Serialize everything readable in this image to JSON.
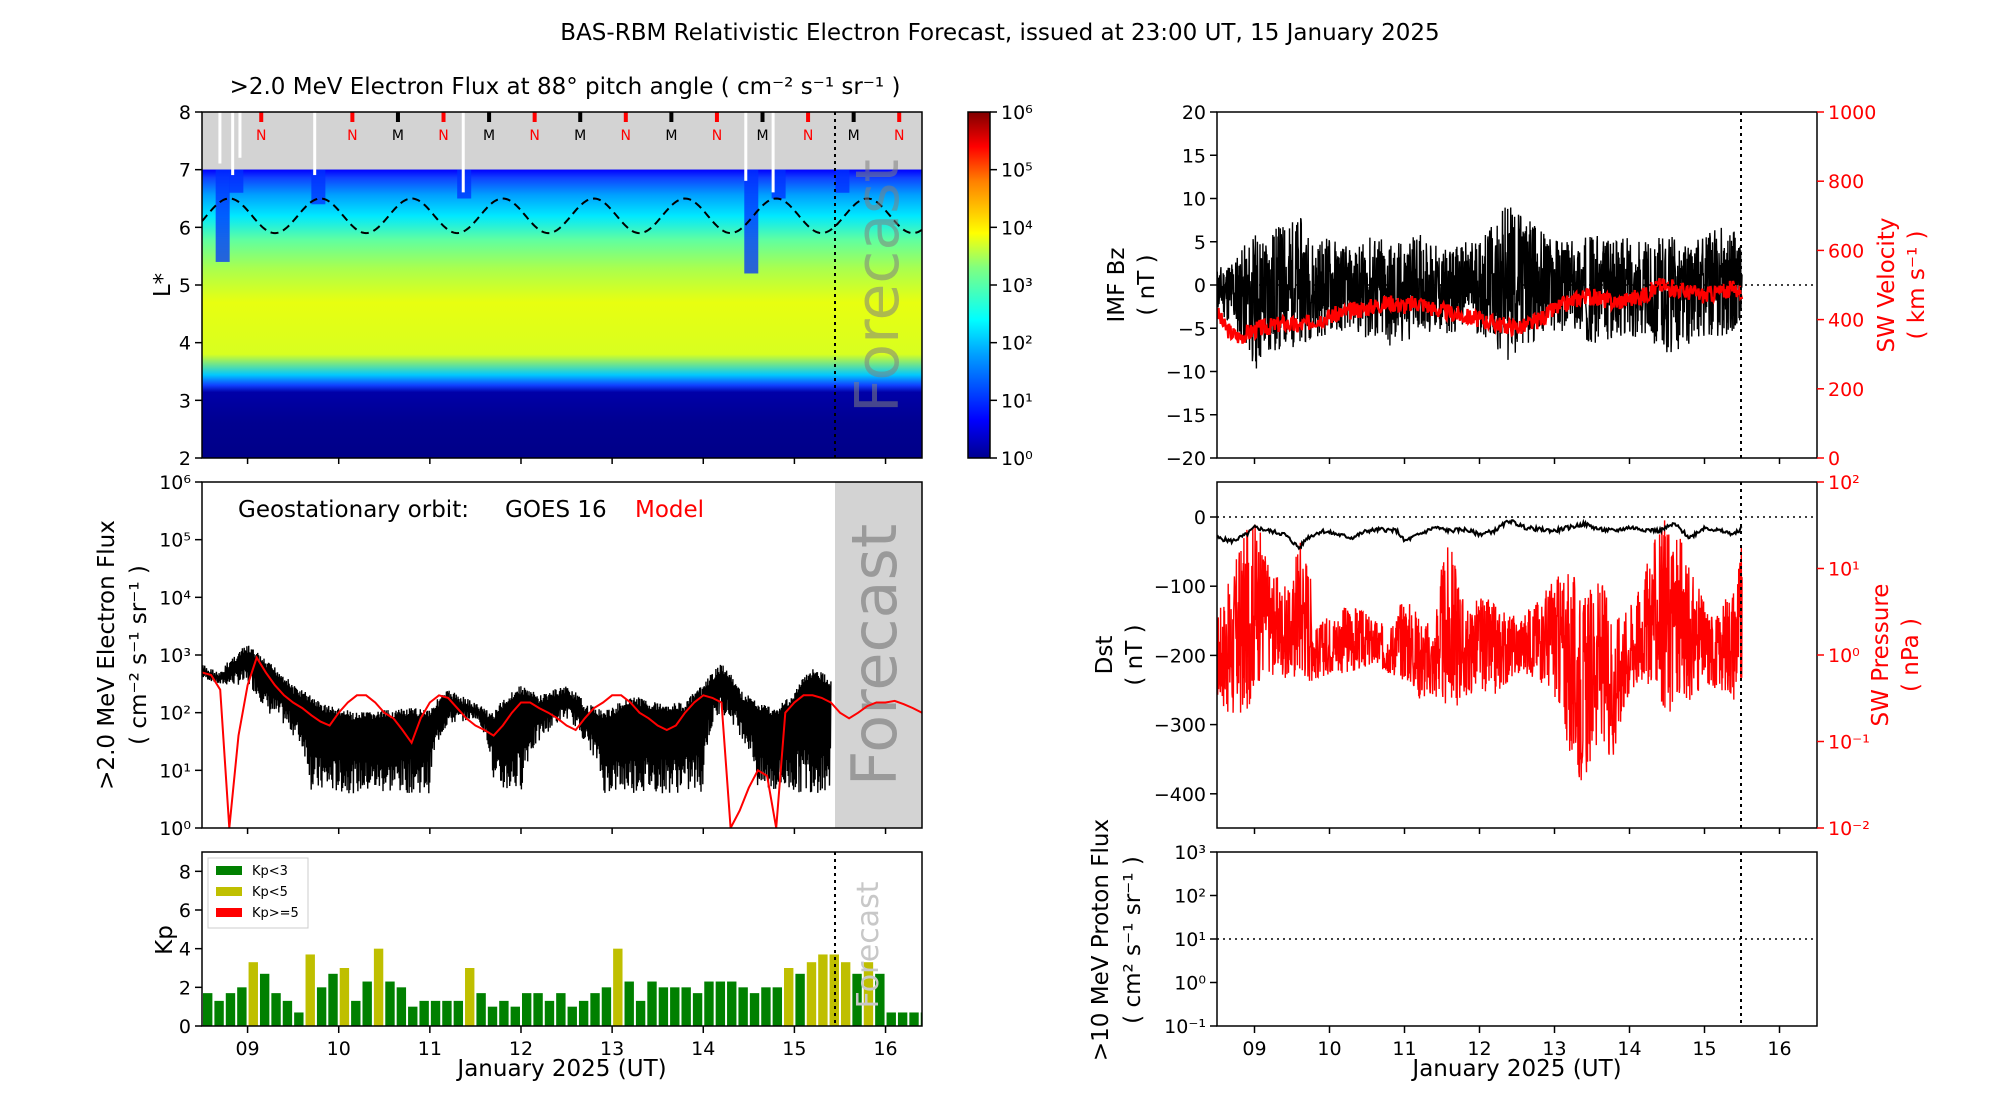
{
  "figure": {
    "title": "BAS-RBM Relativistic Electron Forecast, issued at 23:00 UT, 15 January 2025",
    "forecast_word": "Forecast",
    "xlabel": "January 2025 (UT)",
    "day_ticks": [
      "09",
      "10",
      "11",
      "12",
      "13",
      "14",
      "15",
      "16"
    ]
  },
  "colors": {
    "model": "#ff0000",
    "observed": "#000000",
    "kp_low": "#008000",
    "kp_mid": "#bfbf00",
    "kp_high": "#ff0000",
    "forecast_shade": "#d3d3d3"
  },
  "chart_data": [
    {
      "type": "heatmap",
      "id": "flux_map",
      "title": ">2.0 MeV Electron Flux at 88° pitch angle ( cm⁻² s⁻¹ sr⁻¹ )",
      "ylabel": "L*",
      "ylim": [
        2,
        8
      ],
      "yticks": [
        "2",
        "3",
        "4",
        "5",
        "6",
        "7",
        "8"
      ],
      "colorbar": {
        "ticks": [
          "10⁰",
          "10¹",
          "10²",
          "10³",
          "10⁴",
          "10⁵",
          "10⁶"
        ],
        "range": [
          0,
          6
        ]
      },
      "markers": [
        {
          "day": 9.2,
          "label": "N"
        },
        {
          "day": 10.2,
          "label": "N"
        },
        {
          "day": 10.7,
          "label": "M"
        },
        {
          "day": 11.2,
          "label": "N"
        },
        {
          "day": 11.7,
          "label": "M"
        },
        {
          "day": 12.2,
          "label": "N"
        },
        {
          "day": 12.7,
          "label": "M"
        },
        {
          "day": 13.2,
          "label": "N"
        },
        {
          "day": 13.7,
          "label": "M"
        },
        {
          "day": 14.2,
          "label": "N"
        },
        {
          "day": 14.7,
          "label": "M"
        },
        {
          "day": 15.2,
          "label": "N"
        },
        {
          "day": 15.7,
          "label": "M"
        },
        {
          "day": 16.2,
          "label": "N"
        }
      ]
    },
    {
      "type": "line",
      "id": "geo_flux",
      "ylabel": ">2.0 MeV Electron Flux",
      "ylabel2": "( cm⁻² s⁻¹ sr⁻¹ )",
      "legend_prefix": "Geostationary orbit:",
      "legend_series": "GOES 16",
      "legend_model": "Model",
      "yscale": "log",
      "ylim": [
        1,
        1000000
      ],
      "yticks": [
        "10⁰",
        "10¹",
        "10²",
        "10³",
        "10⁴",
        "10⁵",
        "10⁶"
      ],
      "model": {
        "x": [
          8.5,
          8.6,
          8.7,
          8.8,
          8.9,
          9.0,
          9.1,
          9.2,
          9.3,
          9.4,
          9.5,
          9.6,
          9.7,
          9.8,
          9.9,
          10.0,
          10.1,
          10.2,
          10.3,
          10.4,
          10.5,
          10.6,
          10.7,
          10.8,
          10.9,
          11.0,
          11.1,
          11.2,
          11.3,
          11.4,
          11.5,
          11.6,
          11.7,
          11.8,
          11.9,
          12.0,
          12.1,
          12.2,
          12.3,
          12.4,
          12.5,
          12.6,
          12.7,
          12.8,
          12.9,
          13.0,
          13.1,
          13.2,
          13.3,
          13.4,
          13.5,
          13.6,
          13.7,
          13.8,
          13.9,
          14.0,
          14.1,
          14.2,
          14.3,
          14.4,
          14.5,
          14.6,
          14.7,
          14.8,
          14.9,
          15.0,
          15.1,
          15.2,
          15.3,
          15.4,
          15.5,
          15.6,
          15.7,
          15.8,
          15.9,
          16.0,
          16.1,
          16.2,
          16.3,
          16.4
        ],
        "y": [
          500,
          450,
          250,
          1,
          40,
          300,
          900,
          500,
          300,
          200,
          150,
          120,
          90,
          70,
          60,
          100,
          150,
          200,
          200,
          150,
          100,
          80,
          50,
          30,
          80,
          150,
          200,
          180,
          120,
          80,
          60,
          50,
          40,
          60,
          100,
          150,
          150,
          120,
          100,
          80,
          60,
          50,
          80,
          120,
          150,
          200,
          200,
          150,
          100,
          80,
          60,
          50,
          60,
          100,
          150,
          200,
          180,
          150,
          1,
          2,
          5,
          10,
          8,
          1,
          100,
          150,
          200,
          200,
          180,
          150,
          100,
          80,
          100,
          130,
          150,
          150,
          160,
          140,
          120,
          100
        ]
      },
      "observed_envelope": {
        "x": [
          8.5,
          8.7,
          9.0,
          9.2,
          9.5,
          9.7,
          9.8,
          10.0,
          10.2,
          10.5,
          10.8,
          11.0,
          11.2,
          11.5,
          11.7,
          12.0,
          12.2,
          12.5,
          12.7,
          12.9,
          13.0,
          13.2,
          13.5,
          13.8,
          14.0,
          14.2,
          14.4,
          14.6,
          14.8,
          15.0,
          15.2,
          15.4
        ],
        "upper": [
          700,
          500,
          1500,
          800,
          300,
          200,
          150,
          120,
          100,
          110,
          120,
          120,
          250,
          150,
          100,
          300,
          200,
          300,
          150,
          110,
          120,
          200,
          150,
          150,
          300,
          700,
          250,
          150,
          120,
          220,
          600,
          400
        ],
        "lower": [
          400,
          300,
          300,
          100,
          40,
          4,
          4,
          4,
          4,
          4,
          4,
          4,
          60,
          80,
          4,
          4,
          30,
          80,
          30,
          4,
          4,
          4,
          4,
          4,
          4,
          100,
          40,
          4,
          4,
          4,
          4,
          4
        ]
      }
    },
    {
      "type": "bar",
      "id": "kp",
      "ylabel": "Kp",
      "ylim": [
        0,
        9
      ],
      "yticks": [
        "0",
        "2",
        "4",
        "6",
        "8"
      ],
      "legend": [
        "Kp<3",
        "Kp<5",
        "Kp>=5"
      ],
      "start_day": 8.5,
      "bin_hours": 3,
      "values": [
        1.7,
        1.3,
        1.7,
        2.0,
        3.3,
        2.7,
        1.7,
        1.3,
        0.7,
        3.7,
        2.0,
        2.7,
        3.0,
        1.3,
        2.3,
        4.0,
        2.3,
        2.0,
        1.0,
        1.3,
        1.3,
        1.3,
        1.3,
        3.0,
        1.7,
        1.0,
        1.3,
        1.0,
        1.7,
        1.7,
        1.3,
        1.7,
        1.0,
        1.3,
        1.7,
        2.0,
        4.0,
        2.3,
        1.3,
        2.3,
        2.0,
        2.0,
        2.0,
        1.7,
        2.3,
        2.3,
        2.3,
        2.0,
        1.7,
        2.0,
        2.0,
        3.0,
        2.7,
        3.3,
        3.7,
        3.7,
        3.3,
        2.7,
        3.3,
        2.7,
        0.7,
        0.7,
        0.7,
        0.7,
        0.7,
        0.7,
        0.7,
        0.7
      ]
    },
    {
      "type": "line",
      "id": "imf_sw",
      "ylabel": "IMF Bz",
      "ylabel_unit": "( nT )",
      "ylim": [
        -20,
        20
      ],
      "yticks": [
        "−20",
        "−15",
        "−10",
        "−5",
        "0",
        "5",
        "10",
        "15",
        "20"
      ],
      "y2label": "SW Velocity",
      "y2label_unit": "( km s⁻¹ )",
      "y2lim": [
        0,
        1000
      ],
      "y2ticks": [
        "0",
        "200",
        "400",
        "600",
        "800",
        "1000"
      ],
      "bz_envelope": {
        "x": [
          8.5,
          8.8,
          9.0,
          9.3,
          9.6,
          9.8,
          10.0,
          10.3,
          10.6,
          10.9,
          11.2,
          11.5,
          11.8,
          12.0,
          12.2,
          12.4,
          12.6,
          12.9,
          13.2,
          13.5,
          13.8,
          14.0,
          14.2,
          14.5,
          14.8,
          15.0,
          15.2,
          15.5
        ],
        "upper": [
          2,
          4,
          6,
          7,
          8,
          5,
          6,
          4,
          6,
          5,
          6,
          4,
          5,
          6,
          7,
          10,
          8,
          6,
          5,
          6,
          5,
          6,
          5,
          6,
          5,
          6,
          7,
          6
        ],
        "lower": [
          -3,
          -6,
          -10,
          -8,
          -7,
          -6,
          -6,
          -5,
          -7,
          -8,
          -5,
          -6,
          -5,
          -6,
          -7,
          -9,
          -7,
          -6,
          -5,
          -7,
          -6,
          -6,
          -6,
          -8,
          -7,
          -6,
          -6,
          -5
        ]
      },
      "velocity": {
        "x": [
          8.5,
          8.6,
          8.7,
          8.8,
          9.0,
          9.2,
          9.4,
          9.6,
          9.8,
          10.0,
          10.2,
          10.4,
          10.6,
          10.8,
          11.0,
          11.2,
          11.4,
          11.6,
          11.8,
          12.0,
          12.2,
          12.4,
          12.6,
          12.8,
          13.0,
          13.2,
          13.4,
          13.6,
          13.8,
          14.0,
          14.2,
          14.4,
          14.6,
          14.8,
          15.0,
          15.2,
          15.4,
          15.5
        ],
        "y": [
          420,
          380,
          360,
          350,
          370,
          380,
          390,
          380,
          400,
          410,
          420,
          430,
          440,
          450,
          440,
          450,
          430,
          420,
          410,
          400,
          390,
          380,
          380,
          400,
          430,
          450,
          470,
          460,
          450,
          460,
          470,
          500,
          490,
          480,
          470,
          480,
          490,
          480
        ]
      }
    },
    {
      "type": "line",
      "id": "dst_pressure",
      "ylabel": "Dst",
      "ylabel_unit": "( nT )",
      "ylim": [
        -450,
        50
      ],
      "yticks": [
        "−400",
        "−300",
        "−200",
        "−100",
        "0"
      ],
      "y2label": "SW Pressure",
      "y2label_unit": "( nPa )",
      "y2scale": "log",
      "y2lim": [
        0.01,
        100
      ],
      "y2ticks": [
        "10⁻²",
        "10⁻¹",
        "10⁰",
        "10¹",
        "10²"
      ],
      "dst": {
        "x": [
          8.5,
          8.7,
          8.9,
          9.0,
          9.2,
          9.4,
          9.6,
          9.7,
          9.9,
          10.1,
          10.3,
          10.5,
          10.7,
          10.9,
          11.0,
          11.2,
          11.4,
          11.6,
          11.8,
          12.0,
          12.2,
          12.4,
          12.6,
          12.8,
          13.0,
          13.2,
          13.4,
          13.6,
          13.8,
          14.0,
          14.2,
          14.4,
          14.6,
          14.8,
          15.0,
          15.2,
          15.4,
          15.5
        ],
        "y": [
          -30,
          -35,
          -25,
          -15,
          -20,
          -25,
          -45,
          -30,
          -20,
          -25,
          -30,
          -20,
          -18,
          -20,
          -35,
          -25,
          -15,
          -20,
          -18,
          -25,
          -20,
          -5,
          -15,
          -18,
          -20,
          -15,
          -10,
          -18,
          -20,
          -15,
          -18,
          -20,
          -10,
          -30,
          -15,
          -20,
          -25,
          -15
        ]
      },
      "pressure_envelope": {
        "x": [
          8.5,
          8.7,
          8.9,
          9.0,
          9.2,
          9.5,
          9.6,
          9.8,
          10.0,
          10.3,
          10.5,
          10.8,
          11.0,
          11.2,
          11.4,
          11.6,
          11.8,
          12.0,
          12.2,
          12.4,
          12.6,
          12.8,
          13.0,
          13.2,
          13.4,
          13.6,
          13.8,
          14.0,
          14.2,
          14.4,
          14.5,
          14.6,
          14.8,
          15.0,
          15.2,
          15.4,
          15.5
        ],
        "upper": [
          3,
          8,
          30,
          40,
          10,
          5,
          30,
          2,
          3,
          4,
          3,
          2,
          5,
          3,
          2,
          20,
          3,
          5,
          4,
          3,
          3,
          5,
          8,
          10,
          5,
          8,
          3,
          4,
          8,
          30,
          40,
          30,
          10,
          4,
          3,
          8,
          20
        ],
        "lower": [
          0.3,
          0.15,
          0.2,
          0.4,
          0.6,
          0.5,
          0.5,
          0.5,
          0.6,
          0.6,
          0.7,
          0.6,
          0.5,
          0.3,
          0.3,
          0.2,
          0.3,
          0.4,
          0.3,
          0.5,
          0.6,
          0.5,
          0.3,
          0.05,
          0.03,
          0.1,
          0.05,
          0.3,
          0.5,
          0.3,
          0.2,
          0.2,
          0.3,
          0.4,
          0.4,
          0.3,
          0.3
        ]
      }
    },
    {
      "type": "line",
      "id": "proton_flux",
      "ylabel": ">10 MeV Proton Flux",
      "ylabel2": "( cm² s⁻¹ sr⁻¹ )",
      "yscale": "log",
      "ylim": [
        0.1,
        1000
      ],
      "yticks": [
        "10⁻¹",
        "10⁰",
        "10¹",
        "10²",
        "10³"
      ],
      "threshold": 10
    }
  ]
}
